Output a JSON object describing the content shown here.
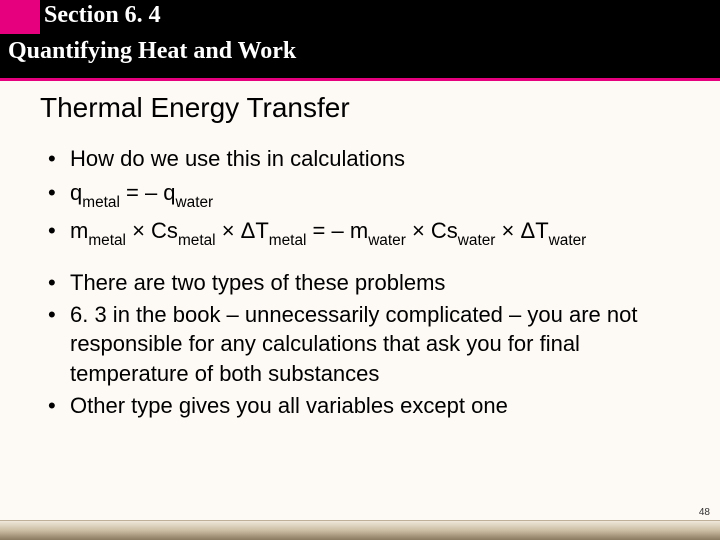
{
  "header": {
    "section_label": "Section 6. 4",
    "subtitle": "Quantifying Heat and Work",
    "accent_color": "#e6007e"
  },
  "title": "Thermal Energy Transfer",
  "bullets_group1": {
    "b0": "How do we use this in calculations",
    "b1_q": "q",
    "b1_sub_metal": "metal",
    "b1_eq": " = – q",
    "b1_sub_water": "water",
    "b2_m": "m",
    "b2_times_cs": " × Cs",
    "b2_times_dt": " × ΔT",
    "b2_eq_neg_m": " = – m",
    "b2_sub_metal": "metal",
    "b2_sub_water": "water"
  },
  "bullets_group2": {
    "b0": "There are two types of these problems",
    "b1": "6. 3 in the book – unnecessarily complicated – you are not responsible for any calculations that ask you for final temperature of both substances",
    "b2": "Other type gives you all variables except one"
  },
  "page_number": "48"
}
